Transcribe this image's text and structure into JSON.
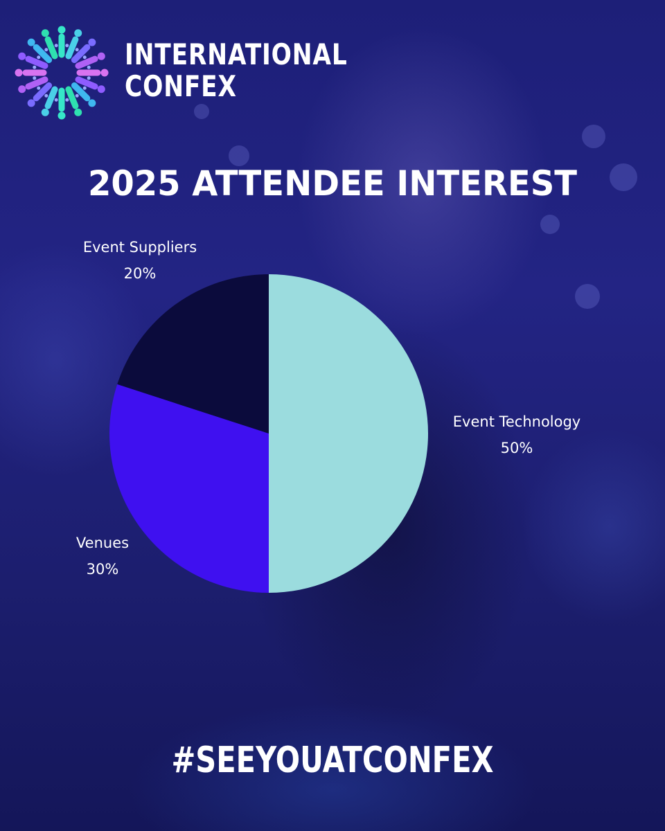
{
  "brand": {
    "line1": "INTERNATIONAL",
    "line2": "CONFEX",
    "logo_icon": "people-circle-logo-icon"
  },
  "chart_data": {
    "type": "pie",
    "title": "2025 ATTENDEE INTEREST",
    "categories": [
      "Event Technology",
      "Venues",
      "Event Suppliers"
    ],
    "values": [
      50,
      30,
      20
    ],
    "value_labels": [
      "50%",
      "30%",
      "20%"
    ],
    "colors": [
      "#9bdcde",
      "#3f10f0",
      "#0b0b3c"
    ],
    "legend": "none"
  },
  "footer": {
    "hashtag": "#SEEYOUATCONFEX"
  },
  "colors": {
    "background": "#1f2178",
    "text": "#ffffff"
  }
}
